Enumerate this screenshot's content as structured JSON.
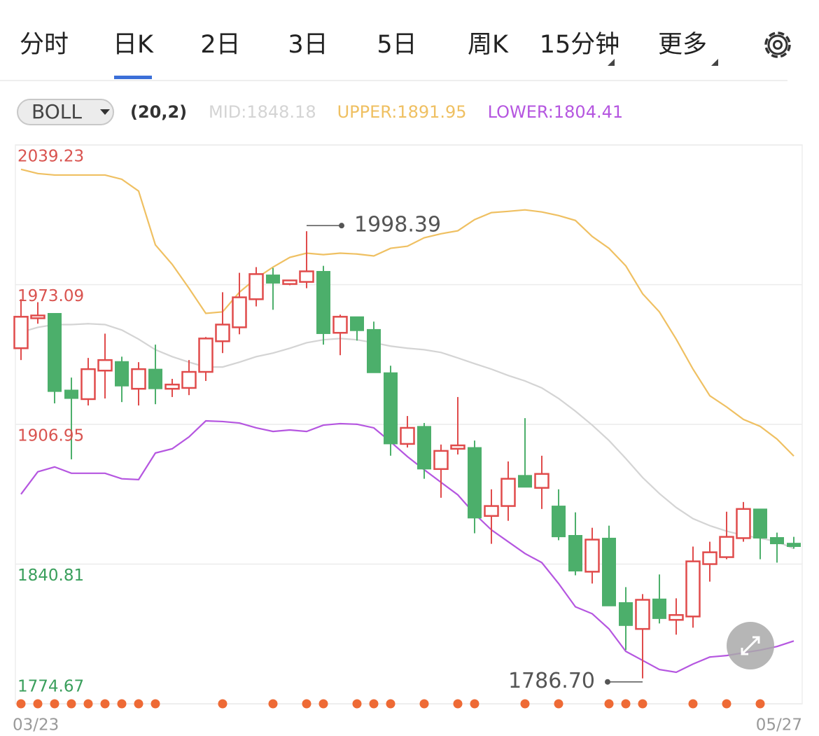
{
  "tabs": [
    "分时",
    "日K",
    "2日",
    "3日",
    "5日",
    "周K",
    "15分钟",
    "更多"
  ],
  "active_tab": 1,
  "indicator": {
    "name": "BOLL",
    "params": "(20,2)"
  },
  "chart_data": {
    "type": "candlestick",
    "categories": [
      "03/23",
      null,
      null,
      null,
      null,
      null,
      null,
      null,
      null,
      null,
      null,
      null,
      null,
      null,
      null,
      null,
      null,
      null,
      null,
      null,
      null,
      null,
      null,
      null,
      null,
      null,
      null,
      null,
      null,
      null,
      null,
      null,
      null,
      null,
      null,
      null,
      null,
      null,
      null,
      null,
      null,
      null,
      null,
      null,
      null,
      null,
      "05/27"
    ],
    "open": [
      1943.0,
      1957.2,
      1959.5,
      1923.2,
      1918.9,
      1932.4,
      1936.7,
      1923.8,
      1933.1,
      1923.8,
      1924.2,
      1931.8,
      1946.3,
      1952.9,
      1966.2,
      1977.7,
      1973.4,
      1974.4,
      1979.4,
      1950.3,
      1957.9,
      1951.9,
      1931.4,
      1897.7,
      1906.0,
      1885.8,
      1895.4,
      1896.0,
      1863.6,
      1868.3,
      1882.8,
      1876.9,
      1868.3,
      1854.4,
      1837.2,
      1853.1,
      1822.6,
      1810.1,
      1824.3,
      1814.4,
      1816.0,
      1840.8,
      1844.1,
      1853.1,
      1866.9,
      1853.4,
      1850.7
    ],
    "high": [
      1966.2,
      1964.8,
      1959.5,
      1929.1,
      1938.4,
      1949.9,
      1939.0,
      1936.4,
      1944.7,
      1928.5,
      1937.4,
      1948.3,
      1969.5,
      1978.7,
      1981.4,
      1981.0,
      1975.4,
      1998.39,
      1982.0,
      1958.9,
      1957.9,
      1955.6,
      1934.7,
      1910.9,
      1907.6,
      1897.4,
      1919.9,
      1899.3,
      1876.2,
      1889.4,
      1909.9,
      1892.1,
      1876.2,
      1865.3,
      1858.0,
      1859.0,
      1829.9,
      1826.6,
      1835.9,
      1824.6,
      1849.1,
      1851.4,
      1865.6,
      1870.2,
      1866.9,
      1855.7,
      1853.7
    ],
    "low": [
      1937.4,
      1954.6,
      1916.9,
      1890.4,
      1915.9,
      1919.2,
      1917.5,
      1915.9,
      1916.5,
      1919.9,
      1920.8,
      1927.5,
      1940.7,
      1949.6,
      1962.8,
      1961.2,
      1972.8,
      1971.4,
      1944.7,
      1939.7,
      1946.6,
      1931.4,
      1892.1,
      1896.0,
      1881.2,
      1872.2,
      1892.7,
      1855.4,
      1850.4,
      1861.3,
      1877.2,
      1866.9,
      1852.1,
      1835.5,
      1831.6,
      1821.0,
      1800.1,
      1786.7,
      1812.7,
      1807.4,
      1810.7,
      1832.5,
      1843.1,
      1851.4,
      1843.1,
      1841.5,
      1848.1
    ],
    "close": [
      1957.9,
      1958.5,
      1922.5,
      1919.2,
      1933.1,
      1937.4,
      1925.1,
      1933.1,
      1923.8,
      1925.8,
      1931.8,
      1947.6,
      1954.2,
      1967.1,
      1978.1,
      1973.8,
      1975.1,
      1979.4,
      1949.9,
      1957.9,
      1951.3,
      1931.4,
      1897.7,
      1905.3,
      1885.8,
      1894.4,
      1897.0,
      1862.6,
      1868.3,
      1881.2,
      1877.2,
      1883.5,
      1853.7,
      1837.5,
      1852.4,
      1821.0,
      1811.7,
      1823.9,
      1815.0,
      1816.7,
      1842.1,
      1846.4,
      1853.7,
      1866.9,
      1853.1,
      1850.4,
      1849.1
    ],
    "up_color": "#e04b4b",
    "down_color": "#4caf6b",
    "series": [
      {
        "name": "MID:1848.18",
        "color": "#d4d4d4",
        "values": [
          1950.6,
          1952.9,
          1954.2,
          1954.2,
          1954.6,
          1954.2,
          1951.6,
          1947.3,
          1942.3,
          1939.0,
          1936.4,
          1934.1,
          1934.1,
          1936.4,
          1939.0,
          1940.7,
          1943.0,
          1945.6,
          1947.0,
          1947.6,
          1947.0,
          1945.6,
          1944.0,
          1943.0,
          1942.3,
          1941.0,
          1938.4,
          1935.7,
          1933.1,
          1930.1,
          1927.5,
          1924.2,
          1919.2,
          1913.2,
          1906.6,
          1899.3,
          1890.8,
          1881.8,
          1874.2,
          1867.6,
          1862.3,
          1859.0,
          1856.4,
          1854.4,
          1853.1,
          1851.4,
          1848.18
        ]
      },
      {
        "name": "UPPER:1891.95",
        "color": "#efc062",
        "values": [
          2027.7,
          2025.7,
          2025.0,
          2025.0,
          2025.0,
          2025.0,
          2023.0,
          2017.4,
          1991.9,
          1982.7,
          1971.4,
          1959.5,
          1960.2,
          1969.5,
          1976.1,
          1981.4,
          1986.0,
          1988.0,
          1987.3,
          1988.0,
          1987.6,
          1986.7,
          1990.3,
          1991.3,
          1995.3,
          1997.2,
          1998.6,
          2003.9,
          2007.2,
          2007.8,
          2008.5,
          2007.5,
          2005.8,
          2003.5,
          1995.9,
          1990.3,
          1982.0,
          1968.8,
          1960.2,
          1947.3,
          1933.1,
          1920.5,
          1915.2,
          1909.3,
          1906.0,
          1900.0,
          1891.95
        ]
      },
      {
        "name": "LOWER:1804.41",
        "color": "#b556e0",
        "values": [
          1873.9,
          1884.5,
          1886.8,
          1883.8,
          1883.8,
          1883.8,
          1881.2,
          1880.8,
          1893.4,
          1895.4,
          1901.0,
          1908.6,
          1908.3,
          1907.6,
          1905.3,
          1903.6,
          1904.3,
          1903.6,
          1906.6,
          1907.3,
          1907.0,
          1905.3,
          1898.7,
          1891.7,
          1885.5,
          1879.5,
          1873.6,
          1864.6,
          1857.0,
          1851.4,
          1845.8,
          1841.5,
          1831.6,
          1820.6,
          1817.3,
          1810.1,
          1799.5,
          1795.2,
          1790.9,
          1789.6,
          1793.5,
          1796.8,
          1797.5,
          1798.8,
          1800.1,
          1801.8,
          1804.41
        ]
      }
    ],
    "annotations": [
      {
        "text": "1998.39",
        "value": 1998.39,
        "at": "high"
      },
      {
        "text": "1786.70",
        "value": 1786.7,
        "at": "low"
      }
    ],
    "signal_days": [
      0,
      1,
      2,
      3,
      4,
      5,
      6,
      7,
      8,
      12,
      15,
      17,
      18,
      20,
      21,
      22,
      24,
      26,
      27,
      30,
      32,
      35,
      36,
      37,
      40,
      42,
      44
    ],
    "signal_color": "#ee6a35",
    "ylim": [
      1774.67,
      2039.23
    ],
    "yticks": [
      2039.23,
      1973.09,
      1906.95,
      1840.81,
      1774.67
    ],
    "ytick_colors": [
      "#d9534f",
      "#d9534f",
      "#d9534f",
      "#3a9f5c",
      "#3a9f5c"
    ],
    "grid": true
  }
}
